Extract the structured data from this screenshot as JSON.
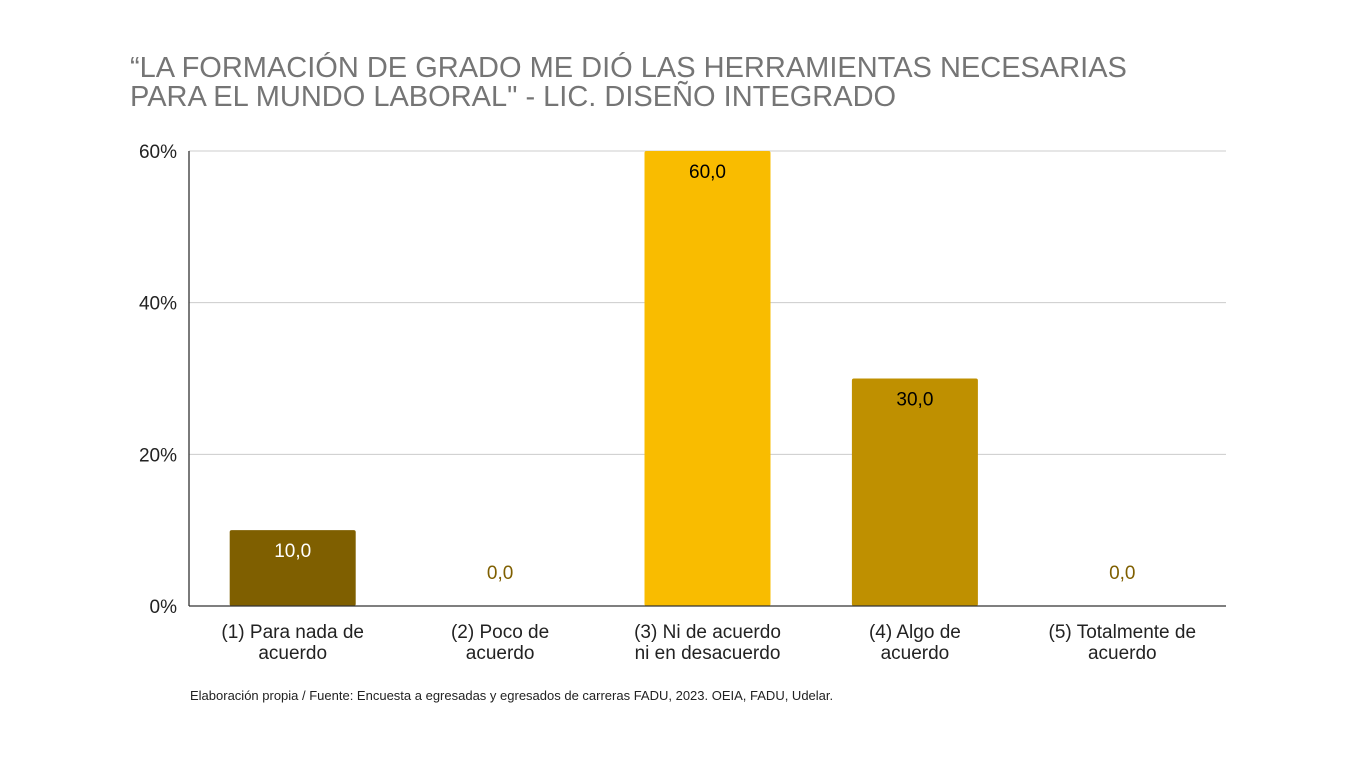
{
  "chart_data": {
    "type": "bar",
    "title_lines": [
      "“LA FORMACIÓN DE GRADO ME DIÓ LAS HERRAMIENTAS NECESARIAS",
      "PARA EL MUNDO LABORAL\" - LIC. DISEÑO INTEGRADO"
    ],
    "categories": [
      [
        "(1) Para nada de",
        "acuerdo"
      ],
      [
        "(2) Poco de",
        "acuerdo"
      ],
      [
        "(3) Ni de acuerdo",
        "ni en desacuerdo"
      ],
      [
        "(4) Algo de",
        "acuerdo"
      ],
      [
        "(5) Totalmente de",
        "acuerdo"
      ]
    ],
    "values": [
      10,
      0,
      60,
      30,
      0
    ],
    "data_labels": [
      "10,0",
      "0,0",
      "60,0",
      "30,0",
      "0,0"
    ],
    "bar_colors": [
      "#7f5f00",
      "#bf9000",
      "#f9bc00",
      "#bf9000",
      "#bf9000"
    ],
    "data_label_colors": [
      "#ffffff",
      "#7f5f00",
      "#000000",
      "#000000",
      "#7f5f00"
    ],
    "yticks": [
      0,
      20,
      40,
      60
    ],
    "ytick_labels": [
      "0%",
      "20%",
      "40%",
      "60%"
    ],
    "ylim": [
      0,
      60
    ],
    "grid": true,
    "legend": "none",
    "xlabel": "",
    "ylabel": ""
  },
  "source": "Elaboración propia / Fuente: Encuesta a egresadas y egresados de carreras FADU, 2023. OEIA, FADU, Udelar."
}
